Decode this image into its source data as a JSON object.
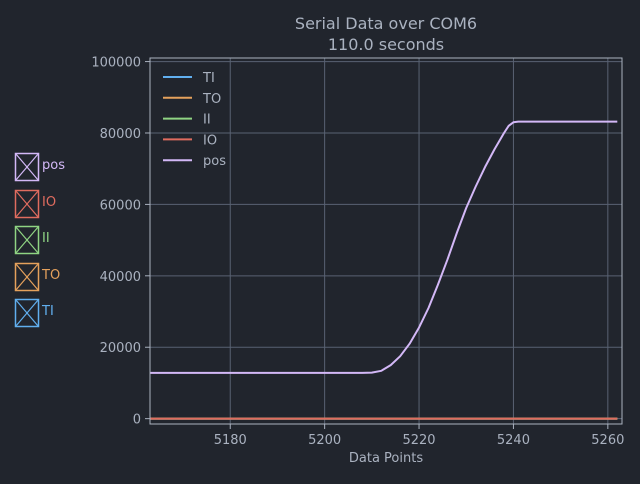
{
  "chart_data": {
    "type": "line",
    "title": "Serial Data over COM6",
    "subtitle": "110.0 seconds",
    "xlabel": "Data Points",
    "ylabel": "",
    "xlim": [
      5163,
      5263
    ],
    "ylim": [
      -1500,
      101000
    ],
    "xticks": [
      5180,
      5200,
      5220,
      5240,
      5260
    ],
    "yticks": [
      0,
      20000,
      40000,
      60000,
      80000,
      100000
    ],
    "grid": true,
    "legend_position": "top-left",
    "series": [
      {
        "name": "TI",
        "color": "#61afef",
        "x": [
          5163,
          5262
        ],
        "y": [
          0,
          0
        ]
      },
      {
        "name": "TO",
        "color": "#e5a15c",
        "x": [
          5163,
          5262
        ],
        "y": [
          0,
          0
        ]
      },
      {
        "name": "II",
        "color": "#8fd483",
        "x": [
          5163,
          5262
        ],
        "y": [
          0,
          0
        ]
      },
      {
        "name": "IO",
        "color": "#e06c5f",
        "x": [
          5163,
          5262
        ],
        "y": [
          0,
          0
        ]
      },
      {
        "name": "pos",
        "color": "#d3b8f7",
        "x": [
          5163,
          5208,
          5210,
          5212,
          5214,
          5216,
          5218,
          5220,
          5222,
          5224,
          5226,
          5228,
          5230,
          5232,
          5234,
          5236,
          5238,
          5239,
          5240,
          5241,
          5242,
          5250,
          5262
        ],
        "y": [
          12800,
          12800,
          12900,
          13400,
          15000,
          17500,
          21000,
          25500,
          31000,
          37500,
          44500,
          52000,
          59000,
          65000,
          70500,
          75500,
          80000,
          82000,
          83000,
          83200,
          83200,
          83200,
          83200
        ]
      }
    ]
  },
  "checkboxes": [
    {
      "label": "pos",
      "color": "#d3b8f7"
    },
    {
      "label": "IO",
      "color": "#e06c5f"
    },
    {
      "label": "II",
      "color": "#8fd483"
    },
    {
      "label": "TO",
      "color": "#e5a15c"
    },
    {
      "label": "TI",
      "color": "#61afef"
    }
  ]
}
